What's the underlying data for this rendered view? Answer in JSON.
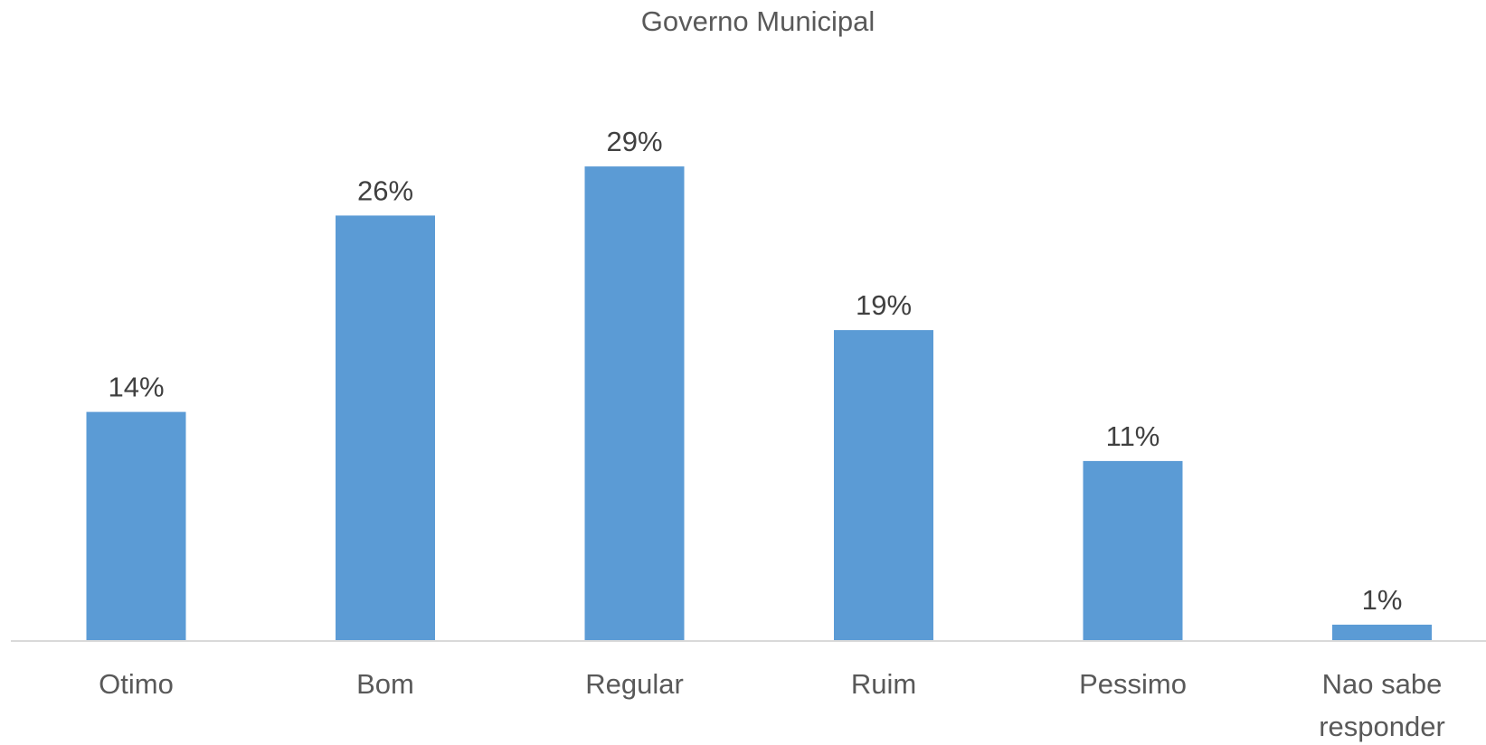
{
  "chart_data": {
    "type": "bar",
    "title": "Governo Municipal",
    "categories": [
      "Otimo",
      "Bom",
      "Regular",
      "Ruim",
      "Pessimo",
      "Nao sabe responder"
    ],
    "values": [
      14,
      26,
      29,
      19,
      11,
      1
    ],
    "value_labels": [
      "14%",
      "26%",
      "29%",
      "19%",
      "11%",
      "1%"
    ],
    "unit": "%",
    "ylim": [
      0,
      30
    ],
    "grid": false,
    "legend": "none",
    "xlabel": "",
    "ylabel": "",
    "colors": {
      "bar": "#5B9BD5",
      "axis": "#D9D9D9",
      "title": "#595959",
      "label": "#404040"
    }
  }
}
